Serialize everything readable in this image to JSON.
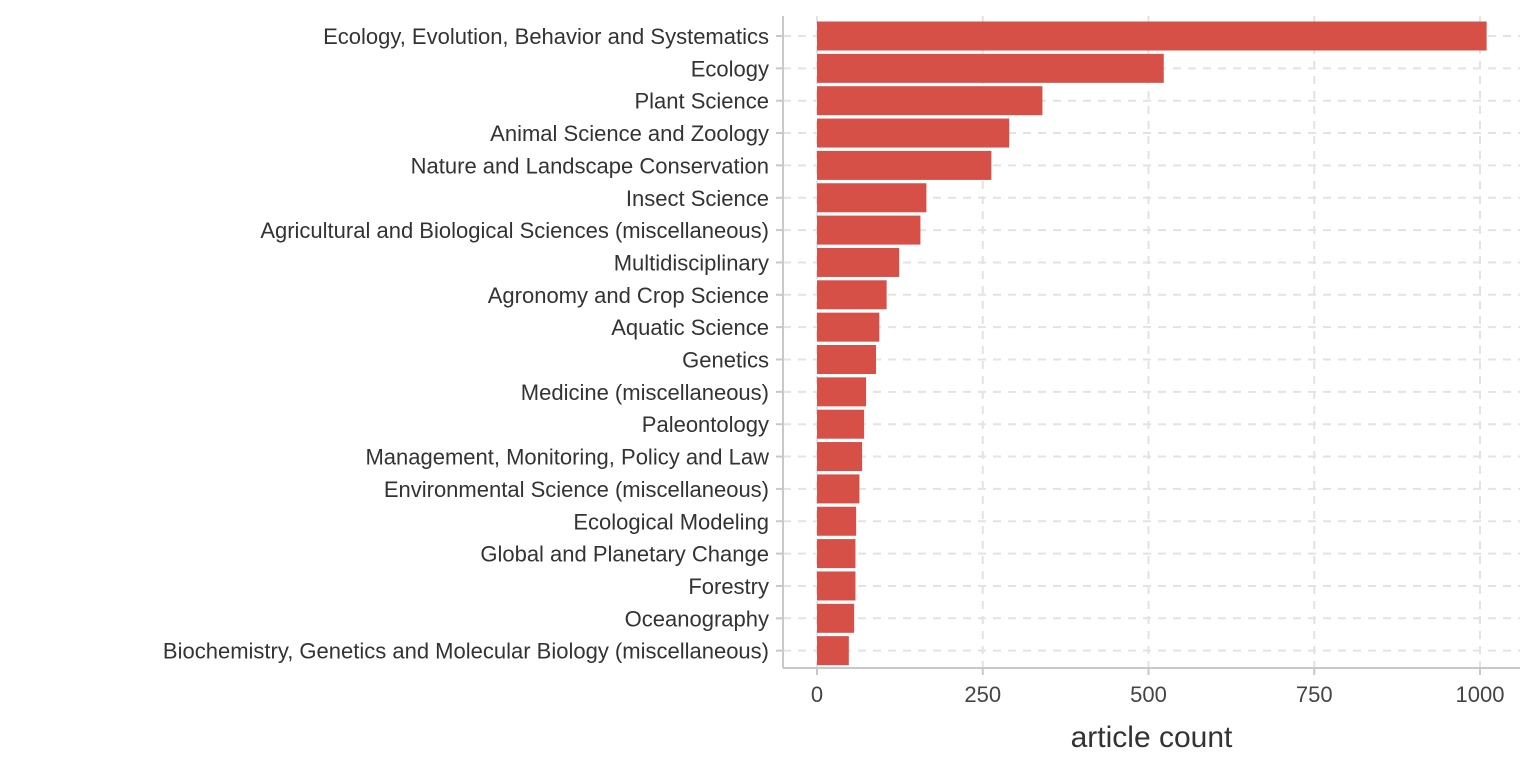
{
  "chart_data": {
    "type": "bar",
    "orientation": "horizontal",
    "categories": [
      "Ecology, Evolution, Behavior and Systematics",
      "Ecology",
      "Plant Science",
      "Animal Science and Zoology",
      "Nature and Landscape Conservation",
      "Insect Science",
      "Agricultural and Biological Sciences (miscellaneous)",
      "Multidisciplinary",
      "Agronomy and Crop Science",
      "Aquatic Science",
      "Genetics",
      "Medicine (miscellaneous)",
      "Paleontology",
      "Management, Monitoring, Policy and Law",
      "Environmental Science (miscellaneous)",
      "Ecological Modeling",
      "Global and Planetary Change",
      "Forestry",
      "Oceanography",
      "Biochemistry, Genetics and Molecular Biology (miscellaneous)"
    ],
    "values": [
      1010,
      523,
      340,
      290,
      263,
      165,
      156,
      124,
      105,
      94,
      89,
      74,
      71,
      68,
      64,
      59,
      58,
      58,
      56,
      48
    ],
    "xlabel": "article count",
    "ylabel": "",
    "xlim": [
      0,
      1050
    ],
    "xticks": [
      0,
      250,
      500,
      750,
      1000
    ],
    "xtick_labels": [
      "0",
      "250",
      "500",
      "750",
      "1000"
    ],
    "grid": true,
    "grid_style": "dashed",
    "colors": {
      "bar": "#d65048",
      "grid": "#e3e3e3",
      "axis": "#c8c8c8",
      "text": "#333333"
    }
  }
}
